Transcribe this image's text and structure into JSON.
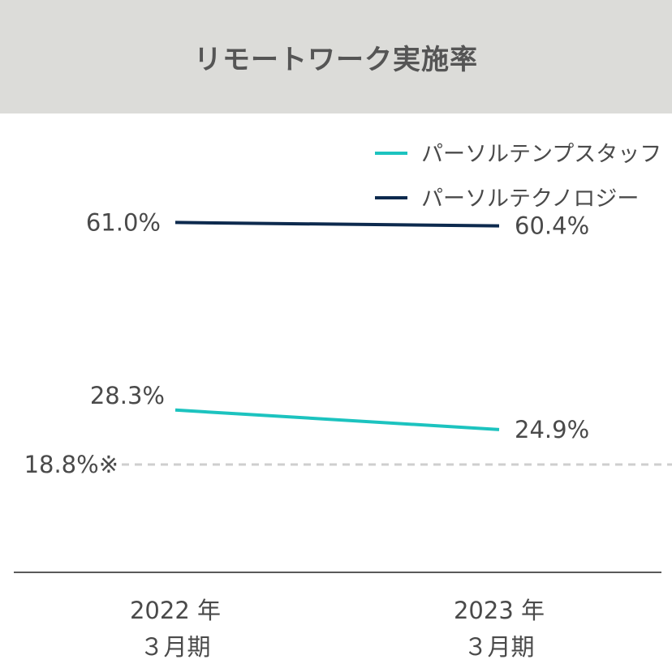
{
  "title": "リモートワーク実施率",
  "colors": {
    "staff": "#1cc3bf",
    "tech": "#0d2a4e",
    "reference": "#cfcfcf",
    "axis": "#5a5a5a",
    "header_bg": "#dcdcd9"
  },
  "chart_data": {
    "type": "line",
    "categories": [
      {
        "year": "2022 年",
        "period": "３月期"
      },
      {
        "year": "2023 年",
        "period": "３月期"
      }
    ],
    "series": [
      {
        "name": "パーソルテンプスタッフ",
        "values": [
          28.3,
          24.9
        ],
        "labels": [
          "28.3%",
          "24.9%"
        ],
        "color": "#1cc3bf"
      },
      {
        "name": "パーソルテクノロジー",
        "values": [
          61.0,
          60.4
        ],
        "labels": [
          "61.0%",
          "60.4%"
        ],
        "color": "#0d2a4e"
      }
    ],
    "reference_line": {
      "value": 18.8,
      "label": "18.8%※",
      "style": "dashed"
    },
    "legend_position": "top-right",
    "ylim": [
      0,
      80
    ],
    "grid": false
  }
}
